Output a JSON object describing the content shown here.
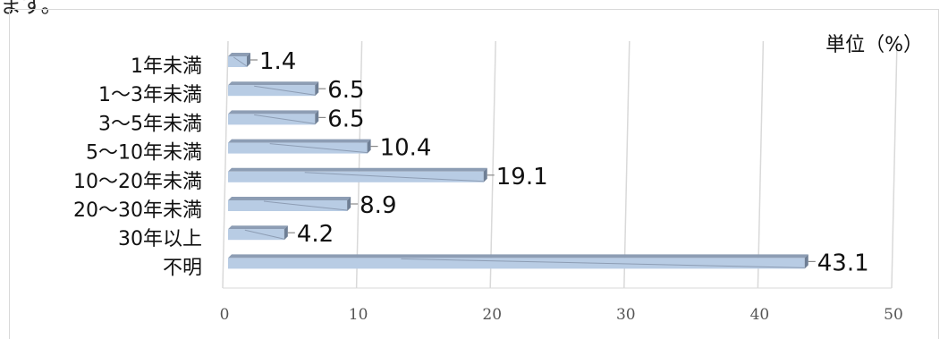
{
  "page_fragment": "ます。",
  "chart_data": {
    "type": "bar",
    "orientation": "horizontal",
    "style": "3d",
    "unit_label": "単位（%）",
    "categories": [
      "1年未満",
      "1〜3年未満",
      "3〜5年未満",
      "5〜10年未満",
      "10〜20年未満",
      "20〜30年未満",
      "30年以上",
      "不明"
    ],
    "values": [
      1.4,
      6.5,
      6.5,
      10.4,
      19.1,
      8.9,
      4.2,
      43.1
    ],
    "value_labels": [
      "1.4",
      "6.5",
      "6.5",
      "10.4",
      "19.1",
      "8.9",
      "4.2",
      "43.1"
    ],
    "x_ticks": [
      "0",
      "10",
      "20",
      "30",
      "40",
      "50"
    ],
    "xlim": [
      0,
      50
    ],
    "grid": true,
    "bar_color": "#b8cce4",
    "bar_top_color": "#8d9db4",
    "bar_end_color": "#6f7f95"
  }
}
